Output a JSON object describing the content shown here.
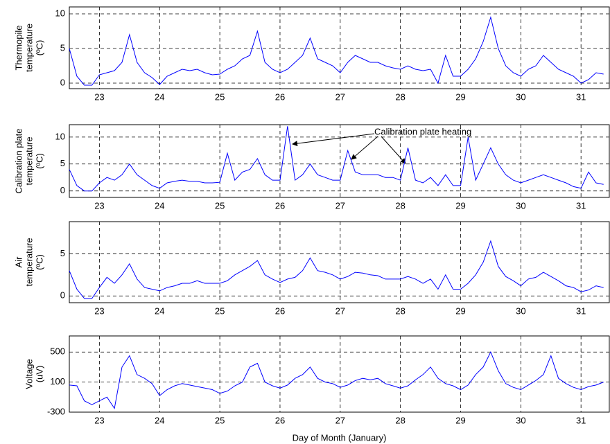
{
  "chart_data": [
    {
      "type": "line",
      "ylabel": [
        "Thermopile",
        "temperature",
        "(ºC)"
      ],
      "color": "#0000ff",
      "grid": true,
      "xlim": [
        22.5,
        31.47
      ],
      "ylim": [
        -0.8,
        11
      ],
      "xticks": [
        23,
        24,
        25,
        26,
        27,
        28,
        29,
        30,
        31
      ],
      "yticks": [
        0,
        5,
        10
      ],
      "x": [
        22.5,
        22.625,
        22.75,
        22.875,
        23,
        23.125,
        23.25,
        23.375,
        23.5,
        23.625,
        23.75,
        23.875,
        24,
        24.125,
        24.25,
        24.375,
        24.5,
        24.625,
        24.75,
        24.875,
        25,
        25.125,
        25.25,
        25.375,
        25.5,
        25.625,
        25.75,
        25.875,
        26,
        26.125,
        26.25,
        26.375,
        26.5,
        26.625,
        26.75,
        26.875,
        27,
        27.125,
        27.25,
        27.375,
        27.5,
        27.625,
        27.75,
        27.875,
        28,
        28.125,
        28.25,
        28.375,
        28.5,
        28.625,
        28.75,
        28.875,
        29,
        29.125,
        29.25,
        29.375,
        29.5,
        29.625,
        29.75,
        29.875,
        30,
        30.125,
        30.25,
        30.375,
        30.5,
        30.625,
        30.75,
        30.875,
        31,
        31.125,
        31.25,
        31.375
      ],
      "values": [
        5,
        1,
        -0.3,
        -0.3,
        1.2,
        1.5,
        1.8,
        3,
        7,
        3,
        1.5,
        0.8,
        -0.2,
        1,
        1.5,
        2,
        1.8,
        2,
        1.5,
        1.2,
        1.3,
        2,
        2.5,
        3.5,
        4,
        7.5,
        3,
        2,
        1.5,
        2,
        3,
        4,
        6.5,
        3.5,
        3,
        2.5,
        1.5,
        3,
        4,
        3.5,
        3,
        3,
        2.5,
        2.2,
        2,
        2.5,
        2,
        1.8,
        2,
        0,
        4,
        1,
        1,
        2,
        3.5,
        6,
        9.5,
        5,
        2.5,
        1.5,
        1,
        2,
        2.5,
        4,
        3,
        2,
        1.5,
        1,
        0,
        0.5,
        1.5,
        1.3
      ]
    },
    {
      "type": "line",
      "ylabel": [
        "Calibration plate",
        "temperature",
        "(ºC)"
      ],
      "color": "#0000ff",
      "grid": true,
      "annotation": "Calibration plate heating",
      "xlim": [
        22.5,
        31.47
      ],
      "ylim": [
        -1.2,
        12.3
      ],
      "xticks": [
        23,
        24,
        25,
        26,
        27,
        28,
        29,
        30,
        31
      ],
      "yticks": [
        0,
        5,
        10
      ],
      "x": [
        22.5,
        22.625,
        22.75,
        22.875,
        23,
        23.125,
        23.25,
        23.375,
        23.5,
        23.625,
        23.75,
        23.875,
        24,
        24.125,
        24.25,
        24.375,
        24.5,
        24.625,
        24.75,
        24.875,
        25,
        25.125,
        25.25,
        25.375,
        25.5,
        25.625,
        25.75,
        25.875,
        26,
        26.125,
        26.25,
        26.375,
        26.5,
        26.625,
        26.75,
        26.875,
        27,
        27.125,
        27.25,
        27.375,
        27.5,
        27.625,
        27.75,
        27.875,
        28,
        28.125,
        28.25,
        28.375,
        28.5,
        28.625,
        28.75,
        28.875,
        29,
        29.125,
        29.25,
        29.375,
        29.5,
        29.625,
        29.75,
        29.875,
        30,
        30.125,
        30.25,
        30.375,
        30.5,
        30.625,
        30.75,
        30.875,
        31,
        31.125,
        31.25,
        31.375
      ],
      "values": [
        4,
        1,
        0,
        0,
        1.5,
        2.5,
        2,
        3,
        5,
        3,
        2,
        1,
        0.5,
        1.5,
        1.8,
        2,
        1.8,
        1.8,
        1.5,
        1.5,
        1.6,
        7,
        2,
        3.5,
        4,
        6,
        3,
        2,
        2,
        12,
        2,
        3,
        5,
        3,
        2.5,
        2,
        2,
        7.5,
        3.5,
        3,
        3,
        3,
        2.5,
        2.5,
        2,
        8,
        2,
        1.5,
        2.5,
        1,
        3,
        1,
        1,
        10,
        2,
        5,
        8,
        5,
        3,
        2,
        1.5,
        2,
        2.5,
        3,
        2.5,
        2,
        1.5,
        0.8,
        0.5,
        3.5,
        1.5,
        1.2
      ]
    },
    {
      "type": "line",
      "ylabel": [
        "Air",
        "temperature",
        "(ºC)"
      ],
      "color": "#0000ff",
      "grid": true,
      "xlim": [
        22.5,
        31.47
      ],
      "ylim": [
        -0.8,
        8.8
      ],
      "xticks": [
        23,
        24,
        25,
        26,
        27,
        28,
        29,
        30,
        31
      ],
      "yticks": [
        0,
        5
      ],
      "x": [
        22.5,
        22.625,
        22.75,
        22.875,
        23,
        23.125,
        23.25,
        23.375,
        23.5,
        23.625,
        23.75,
        23.875,
        24,
        24.125,
        24.25,
        24.375,
        24.5,
        24.625,
        24.75,
        24.875,
        25,
        25.125,
        25.25,
        25.375,
        25.5,
        25.625,
        25.75,
        25.875,
        26,
        26.125,
        26.25,
        26.375,
        26.5,
        26.625,
        26.75,
        26.875,
        27,
        27.125,
        27.25,
        27.375,
        27.5,
        27.625,
        27.75,
        27.875,
        28,
        28.125,
        28.25,
        28.375,
        28.5,
        28.625,
        28.75,
        28.875,
        29,
        29.125,
        29.25,
        29.375,
        29.5,
        29.625,
        29.75,
        29.875,
        30,
        30.125,
        30.25,
        30.375,
        30.5,
        30.625,
        30.75,
        30.875,
        31,
        31.125,
        31.25,
        31.375
      ],
      "values": [
        3,
        0.8,
        -0.3,
        -0.3,
        1,
        2.2,
        1.5,
        2.5,
        3.8,
        2,
        1,
        0.8,
        0.6,
        1,
        1.2,
        1.5,
        1.5,
        1.8,
        1.5,
        1.5,
        1.5,
        1.8,
        2.5,
        3,
        3.5,
        4.2,
        2.5,
        2,
        1.6,
        2,
        2.2,
        3,
        4.5,
        3,
        2.8,
        2.5,
        2,
        2.3,
        2.8,
        2.7,
        2.5,
        2.4,
        2,
        2,
        2,
        2.3,
        2,
        1.5,
        2,
        0.8,
        2.5,
        0.8,
        0.8,
        1.5,
        2.5,
        4,
        6.5,
        3.5,
        2.3,
        1.8,
        1.2,
        2,
        2.2,
        2.8,
        2.3,
        1.8,
        1.2,
        1,
        0.5,
        0.7,
        1.2,
        1
      ]
    },
    {
      "type": "line",
      "ylabel": [
        "Voltage",
        "(uV)"
      ],
      "xlabel": "Day of Month (January)",
      "color": "#0000ff",
      "grid": true,
      "xlim": [
        22.5,
        31.47
      ],
      "ylim": [
        -300,
        714
      ],
      "xticks": [
        23,
        24,
        25,
        26,
        27,
        28,
        29,
        30,
        31
      ],
      "yticks": [
        -300,
        100,
        500
      ],
      "x": [
        22.5,
        22.625,
        22.75,
        22.875,
        23,
        23.125,
        23.25,
        23.375,
        23.5,
        23.625,
        23.75,
        23.875,
        24,
        24.125,
        24.25,
        24.375,
        24.5,
        24.625,
        24.75,
        24.875,
        25,
        25.125,
        25.25,
        25.375,
        25.5,
        25.625,
        25.75,
        25.875,
        26,
        26.125,
        26.25,
        26.375,
        26.5,
        26.625,
        26.75,
        26.875,
        27,
        27.125,
        27.25,
        27.375,
        27.5,
        27.625,
        27.75,
        27.875,
        28,
        28.125,
        28.25,
        28.375,
        28.5,
        28.625,
        28.75,
        28.875,
        29,
        29.125,
        29.25,
        29.375,
        29.5,
        29.625,
        29.75,
        29.875,
        30,
        30.125,
        30.25,
        30.375,
        30.5,
        30.625,
        30.75,
        30.875,
        31,
        31.125,
        31.25,
        31.375
      ],
      "values": [
        60,
        50,
        -150,
        -200,
        -150,
        -100,
        -250,
        300,
        450,
        200,
        150,
        80,
        -80,
        0,
        50,
        80,
        60,
        40,
        20,
        0,
        -50,
        -20,
        50,
        100,
        300,
        350,
        100,
        50,
        20,
        60,
        150,
        200,
        300,
        150,
        100,
        80,
        30,
        60,
        120,
        150,
        130,
        150,
        80,
        50,
        20,
        50,
        130,
        200,
        300,
        150,
        80,
        50,
        0,
        60,
        200,
        300,
        500,
        250,
        80,
        30,
        0,
        60,
        120,
        200,
        450,
        150,
        80,
        30,
        0,
        40,
        60,
        100
      ]
    }
  ]
}
